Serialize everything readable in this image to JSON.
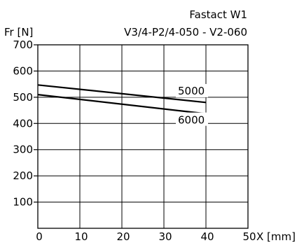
{
  "chart_data": {
    "type": "line",
    "title": "Fastact W1",
    "subtitle": "V3/4-P2/4-050 - V2-060",
    "ylabel": "Fr [N]",
    "xlabel": "X [mm]",
    "xlim": [
      0,
      50
    ],
    "ylim": [
      0,
      700
    ],
    "xticks": [
      "0",
      "10",
      "20",
      "30",
      "40",
      "50"
    ],
    "yticks": [
      "100",
      "200",
      "300",
      "400",
      "500",
      "600",
      "700"
    ],
    "grid": true,
    "series": [
      {
        "name": "5000",
        "x": [
          0,
          40
        ],
        "y": [
          547,
          480
        ]
      },
      {
        "name": "6000",
        "x": [
          0,
          40
        ],
        "y": [
          510,
          437
        ]
      }
    ]
  }
}
